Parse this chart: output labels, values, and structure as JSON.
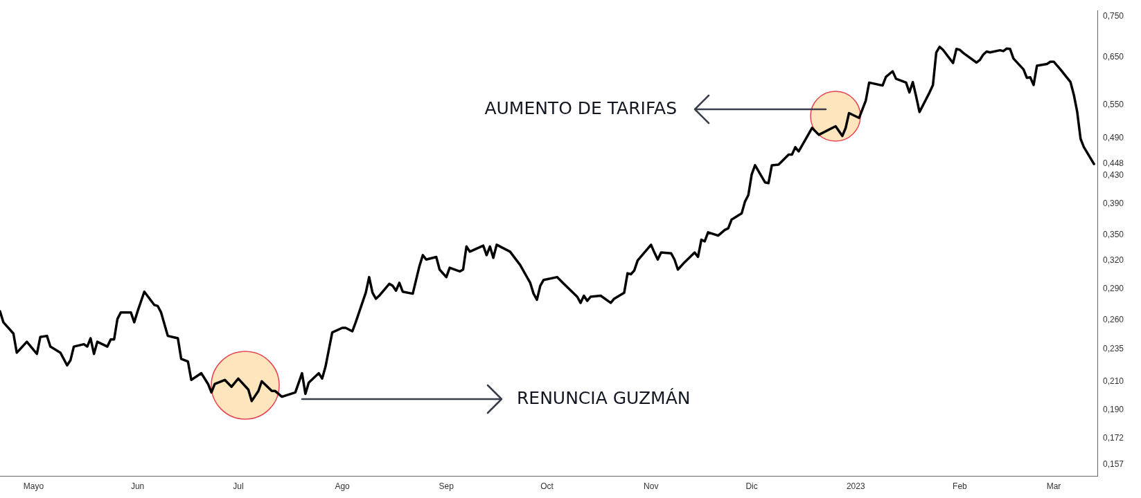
{
  "chart_data": {
    "type": "line",
    "log": "y",
    "color": "#000000",
    "marker": "none",
    "line_style": "solid",
    "xlim": [
      "2022-04-21",
      "2023-03-14"
    ],
    "xticks": [
      {
        "value": "2022-05-01",
        "label": "Mayo"
      },
      {
        "value": "2022-06-01",
        "label": "Jun"
      },
      {
        "value": "2022-07-01",
        "label": "Jul"
      },
      {
        "value": "2022-08-01",
        "label": "Ago"
      },
      {
        "value": "2022-09-01",
        "label": "Sep"
      },
      {
        "value": "2022-10-01",
        "label": "Oct"
      },
      {
        "value": "2022-11-01",
        "label": "Nov"
      },
      {
        "value": "2022-12-01",
        "label": "Dic"
      },
      {
        "value": "2023-01-01",
        "label": "2023"
      },
      {
        "value": "2023-02-01",
        "label": "Feb"
      },
      {
        "value": "2023-03-01",
        "label": "Mar"
      }
    ],
    "ylim": [
      0.151,
      0.765
    ],
    "yticks": [
      {
        "value": 0.157,
        "label": "0,157"
      },
      {
        "value": 0.172,
        "label": "0,172"
      },
      {
        "value": 0.19,
        "label": "0,190"
      },
      {
        "value": 0.21,
        "label": "0,210"
      },
      {
        "value": 0.235,
        "label": "0,235"
      },
      {
        "value": 0.26,
        "label": "0,260"
      },
      {
        "value": 0.29,
        "label": "0,290"
      },
      {
        "value": 0.32,
        "label": "0,320"
      },
      {
        "value": 0.35,
        "label": "0,350"
      },
      {
        "value": 0.39,
        "label": "0,390"
      },
      {
        "value": 0.43,
        "label": "0,430"
      },
      {
        "value": 0.448,
        "label": "0,448"
      },
      {
        "value": 0.49,
        "label": "0,490"
      },
      {
        "value": 0.55,
        "label": "0,550"
      },
      {
        "value": 0.65,
        "label": "0,650"
      },
      {
        "value": 0.75,
        "label": "0,750"
      }
    ],
    "x": [
      "2022-04-21",
      "2022-04-22",
      "2022-04-25",
      "2022-04-26",
      "2022-04-28",
      "2022-04-29",
      "2022-05-02",
      "2022-05-03",
      "2022-05-05",
      "2022-05-06",
      "2022-05-09",
      "2022-05-11",
      "2022-05-12",
      "2022-05-13",
      "2022-05-16",
      "2022-05-17",
      "2022-05-18",
      "2022-05-19",
      "2022-05-20",
      "2022-05-23",
      "2022-05-24",
      "2022-05-25",
      "2022-05-26",
      "2022-05-27",
      "2022-05-30",
      "2022-05-31",
      "2022-06-01",
      "2022-06-03",
      "2022-06-06",
      "2022-06-07",
      "2022-06-08",
      "2022-06-10",
      "2022-06-13",
      "2022-06-14",
      "2022-06-16",
      "2022-06-17",
      "2022-06-20",
      "2022-06-22",
      "2022-06-23",
      "2022-06-24",
      "2022-06-27",
      "2022-06-29",
      "2022-07-01",
      "2022-07-04",
      "2022-07-05",
      "2022-07-07",
      "2022-07-08",
      "2022-07-11",
      "2022-07-12",
      "2022-07-14",
      "2022-07-18",
      "2022-07-20",
      "2022-07-21",
      "2022-07-22",
      "2022-07-25",
      "2022-07-26",
      "2022-07-27",
      "2022-07-29",
      "2022-08-01",
      "2022-08-02",
      "2022-08-04",
      "2022-08-05",
      "2022-08-08",
      "2022-08-09",
      "2022-08-10",
      "2022-08-11",
      "2022-08-12",
      "2022-08-15",
      "2022-08-16",
      "2022-08-17",
      "2022-08-18",
      "2022-08-19",
      "2022-08-22",
      "2022-08-24",
      "2022-08-25",
      "2022-08-26",
      "2022-08-29",
      "2022-08-30",
      "2022-09-01",
      "2022-09-02",
      "2022-09-05",
      "2022-09-06",
      "2022-09-07",
      "2022-09-08",
      "2022-09-12",
      "2022-09-13",
      "2022-09-14",
      "2022-09-15",
      "2022-09-16",
      "2022-09-20",
      "2022-09-23",
      "2022-09-26",
      "2022-09-27",
      "2022-09-28",
      "2022-09-29",
      "2022-09-30",
      "2022-10-04",
      "2022-10-06",
      "2022-10-10",
      "2022-10-11",
      "2022-10-12",
      "2022-10-13",
      "2022-10-14",
      "2022-10-17",
      "2022-10-20",
      "2022-10-21",
      "2022-10-24",
      "2022-10-25",
      "2022-10-26",
      "2022-10-27",
      "2022-10-28",
      "2022-11-01",
      "2022-11-02",
      "2022-11-03",
      "2022-11-04",
      "2022-11-07",
      "2022-11-08",
      "2022-11-09",
      "2022-11-11",
      "2022-11-14",
      "2022-11-15",
      "2022-11-16",
      "2022-11-17",
      "2022-11-18",
      "2022-11-21",
      "2022-11-23",
      "2022-11-24",
      "2022-11-25",
      "2022-11-28",
      "2022-11-29",
      "2022-11-30",
      "2022-12-01",
      "2022-12-02",
      "2022-12-05",
      "2022-12-06",
      "2022-12-07",
      "2022-12-09",
      "2022-12-12",
      "2022-12-13",
      "2022-12-14",
      "2022-12-15",
      "2022-12-19",
      "2022-12-21",
      "2022-12-26",
      "2022-12-28",
      "2022-12-29",
      "2022-12-30",
      "2023-01-02",
      "2023-01-04",
      "2023-01-05",
      "2023-01-09",
      "2023-01-10",
      "2023-01-12",
      "2023-01-13",
      "2023-01-16",
      "2023-01-17",
      "2023-01-18",
      "2023-01-19",
      "2023-01-20",
      "2023-01-23",
      "2023-01-24",
      "2023-01-25",
      "2023-01-26",
      "2023-01-27",
      "2023-01-30",
      "2023-01-31",
      "2023-02-01",
      "2023-02-02",
      "2023-02-06",
      "2023-02-07",
      "2023-02-08",
      "2023-02-09",
      "2023-02-10",
      "2023-02-13",
      "2023-02-14",
      "2023-02-15",
      "2023-02-16",
      "2023-02-17",
      "2023-02-20",
      "2023-02-21",
      "2023-02-22",
      "2023-02-23",
      "2023-02-24",
      "2023-02-27",
      "2023-02-28",
      "2023-03-01",
      "2023-03-03",
      "2023-03-06",
      "2023-03-07",
      "2023-03-08",
      "2023-03-09",
      "2023-03-10",
      "2023-03-13"
    ],
    "values": [
      0.268,
      0.258,
      0.248,
      0.232,
      0.238,
      0.241,
      0.231,
      0.245,
      0.246,
      0.237,
      0.232,
      0.222,
      0.226,
      0.237,
      0.239,
      0.237,
      0.244,
      0.231,
      0.241,
      0.237,
      0.243,
      0.243,
      0.261,
      0.267,
      0.267,
      0.258,
      0.268,
      0.287,
      0.274,
      0.273,
      0.267,
      0.246,
      0.244,
      0.227,
      0.225,
      0.211,
      0.216,
      0.208,
      0.202,
      0.208,
      0.211,
      0.206,
      0.212,
      0.204,
      0.196,
      0.203,
      0.21,
      0.203,
      0.203,
      0.199,
      0.202,
      0.216,
      0.201,
      0.209,
      0.216,
      0.212,
      0.221,
      0.249,
      0.253,
      0.253,
      0.25,
      0.258,
      0.286,
      0.302,
      0.286,
      0.28,
      0.283,
      0.295,
      0.293,
      0.288,
      0.296,
      0.287,
      0.285,
      0.314,
      0.326,
      0.321,
      0.324,
      0.31,
      0.302,
      0.312,
      0.308,
      0.31,
      0.336,
      0.33,
      0.337,
      0.326,
      0.336,
      0.323,
      0.338,
      0.33,
      0.315,
      0.296,
      0.285,
      0.279,
      0.293,
      0.299,
      0.302,
      0.295,
      0.282,
      0.276,
      0.283,
      0.278,
      0.282,
      0.283,
      0.276,
      0.28,
      0.286,
      0.306,
      0.305,
      0.309,
      0.32,
      0.338,
      0.329,
      0.321,
      0.329,
      0.328,
      0.321,
      0.31,
      0.318,
      0.329,
      0.324,
      0.344,
      0.342,
      0.353,
      0.349,
      0.356,
      0.358,
      0.369,
      0.377,
      0.393,
      0.402,
      0.432,
      0.446,
      0.42,
      0.419,
      0.446,
      0.447,
      0.463,
      0.463,
      0.475,
      0.468,
      0.508,
      0.496,
      0.511,
      0.494,
      0.508,
      0.535,
      0.526,
      0.559,
      0.595,
      0.589,
      0.607,
      0.619,
      0.603,
      0.595,
      0.575,
      0.596,
      0.567,
      0.537,
      0.575,
      0.59,
      0.661,
      0.674,
      0.667,
      0.637,
      0.669,
      0.667,
      0.66,
      0.638,
      0.644,
      0.656,
      0.663,
      0.661,
      0.666,
      0.664,
      0.67,
      0.669,
      0.647,
      0.623,
      0.605,
      0.606,
      0.59,
      0.631,
      0.635,
      0.64,
      0.64,
      0.623,
      0.596,
      0.57,
      0.537,
      0.489,
      0.475,
      0.448
    ],
    "annotations": [
      "RENUNCIA GUZMÁN",
      "AUMENTO DE TARIFAS"
    ]
  }
}
